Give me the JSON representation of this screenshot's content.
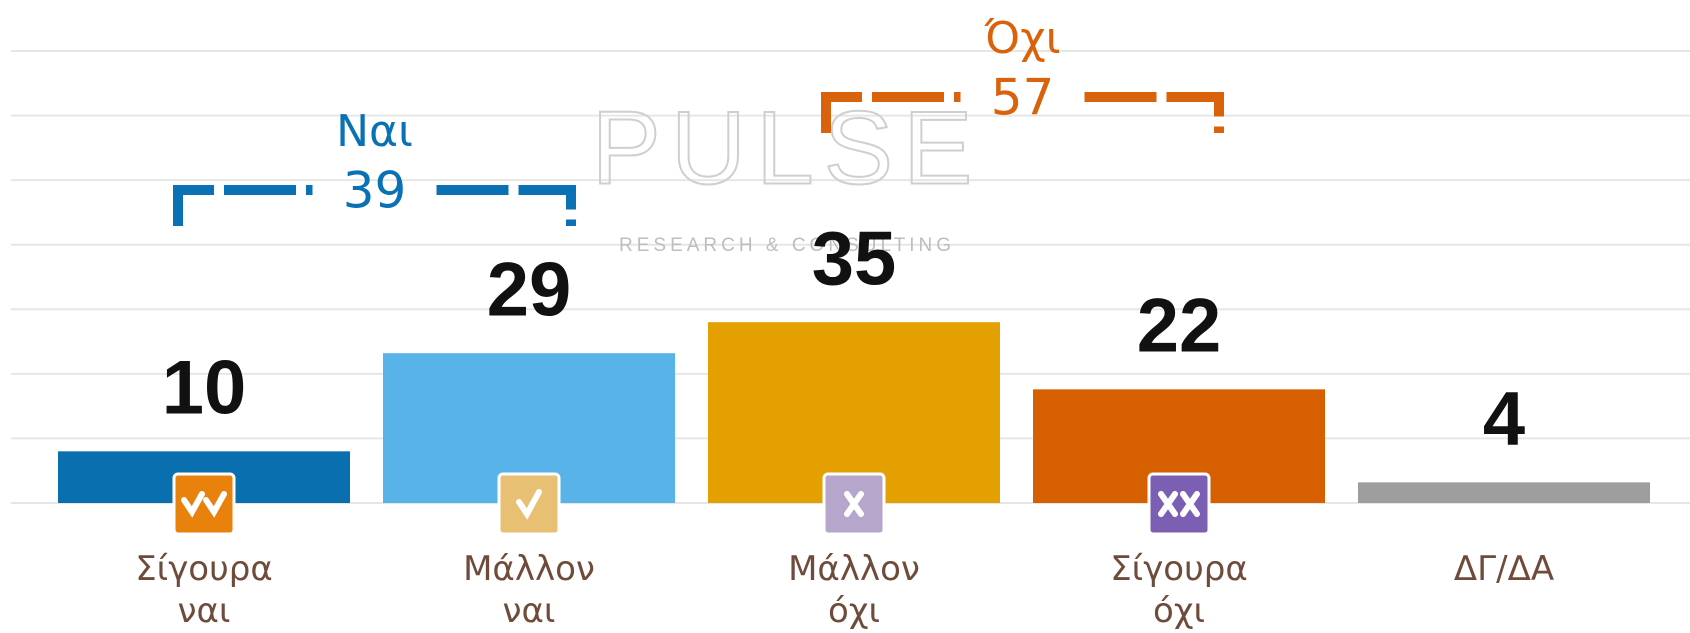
{
  "chart_data": {
    "type": "bar",
    "categories": [
      "Σίγουρα\nναι",
      "Μάλλον\nναι",
      "Μάλλον\nόχι",
      "Σίγουρα\nόχι",
      "ΔΓ/ΔΑ"
    ],
    "values": [
      10,
      29,
      35,
      22,
      4
    ],
    "colors": [
      "#0a6fae",
      "#58b3e8",
      "#e3a000",
      "#d65f00",
      "#9e9e9e"
    ],
    "ylim": [
      0,
      87.5
    ],
    "yticks": [
      0,
      12.5,
      25,
      37.5,
      50,
      62.5,
      75,
      87.5
    ],
    "grid": true,
    "groups": [
      {
        "name": "Ναι",
        "value": 39,
        "color": "#0a72b4"
      },
      {
        "name": "Όχι",
        "value": 57,
        "color": "#d9620a"
      }
    ],
    "logo": {
      "name": "PULSE",
      "tagline": "RESEARCH & CONSULTING"
    }
  }
}
